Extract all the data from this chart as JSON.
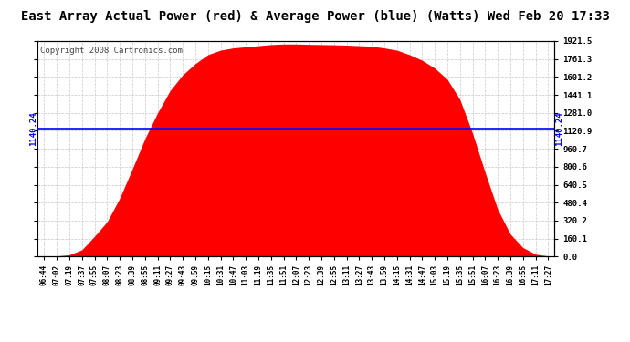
{
  "title": "East Array Actual Power (red) & Average Power (blue) (Watts) Wed Feb 20 17:33",
  "copyright": "Copyright 2008 Cartronics.com",
  "average_power": 1140.24,
  "y_ticks": [
    0.0,
    160.1,
    320.2,
    480.4,
    640.5,
    800.6,
    960.7,
    1120.9,
    1281.0,
    1441.1,
    1601.2,
    1761.3,
    1921.5
  ],
  "y_max": 1921.5,
  "x_labels": [
    "06:44",
    "07:02",
    "07:19",
    "07:37",
    "07:55",
    "08:07",
    "08:23",
    "08:39",
    "08:55",
    "09:11",
    "09:27",
    "09:43",
    "09:59",
    "10:15",
    "10:31",
    "10:47",
    "11:03",
    "11:19",
    "11:35",
    "11:51",
    "12:07",
    "12:23",
    "12:39",
    "12:55",
    "13:11",
    "13:27",
    "13:43",
    "13:59",
    "14:15",
    "14:31",
    "14:47",
    "15:03",
    "15:19",
    "15:35",
    "15:51",
    "16:07",
    "16:23",
    "16:39",
    "16:55",
    "17:11",
    "17:27"
  ],
  "power_values": [
    2,
    5,
    15,
    60,
    180,
    310,
    520,
    780,
    1050,
    1280,
    1480,
    1620,
    1720,
    1800,
    1840,
    1860,
    1870,
    1880,
    1890,
    1895,
    1895,
    1892,
    1890,
    1888,
    1885,
    1880,
    1875,
    1860,
    1840,
    1800,
    1750,
    1680,
    1580,
    1400,
    1100,
    750,
    420,
    200,
    80,
    20,
    5
  ],
  "fill_color": "#ff0000",
  "avg_line_color": "#0000ff",
  "background_color": "#ffffff",
  "grid_color": "#c8c8c8",
  "title_fontsize": 10,
  "copyright_fontsize": 6.5,
  "tick_fontsize": 6.5,
  "xlabel_fontsize": 5.5
}
